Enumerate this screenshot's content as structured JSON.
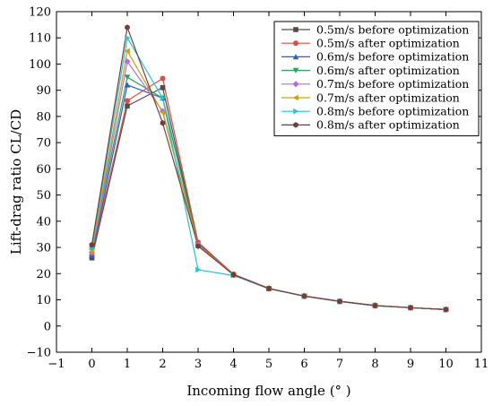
{
  "chart_data": {
    "type": "line",
    "title": "",
    "xlabel": "Incoming flow angle (° )",
    "ylabel": "Lift-drag ratio CL/CD",
    "xlim": [
      -1,
      11
    ],
    "ylim": [
      -10,
      120
    ],
    "xticks": [
      -1,
      0,
      1,
      2,
      3,
      4,
      5,
      6,
      7,
      8,
      9,
      10,
      11
    ],
    "yticks": [
      -10,
      0,
      10,
      20,
      30,
      40,
      50,
      60,
      70,
      80,
      90,
      100,
      110,
      120
    ],
    "x": [
      0,
      1,
      2,
      3,
      4,
      5,
      6,
      7,
      8,
      9,
      10
    ],
    "grid": false,
    "legend_position": "top-right",
    "series": [
      {
        "name": "0.5m/s before optimization",
        "color": "#4d4d4d",
        "marker": "square",
        "values": [
          26,
          84,
          91,
          31,
          19.5,
          14.3,
          11.4,
          9.4,
          7.8,
          7.0,
          6.3
        ]
      },
      {
        "name": "0.5m/s after optimization",
        "color": "#e8483f",
        "marker": "circle",
        "values": [
          27,
          86,
          94.5,
          32,
          19.8,
          14.4,
          11.5,
          9.5,
          7.9,
          7.0,
          6.3
        ]
      },
      {
        "name": "0.6m/s before optimization",
        "color": "#2a60c8",
        "marker": "triangle-up",
        "values": [
          27,
          92,
          87,
          31.5,
          19.5,
          14.3,
          11.4,
          9.4,
          7.8,
          7.0,
          6.3
        ]
      },
      {
        "name": "0.6m/s after optimization",
        "color": "#26a65b",
        "marker": "triangle-down",
        "values": [
          29,
          95,
          87,
          31,
          19.5,
          14.3,
          11.4,
          9.4,
          7.8,
          7.0,
          6.3
        ]
      },
      {
        "name": "0.7m/s before optimization",
        "color": "#b76be3",
        "marker": "diamond",
        "values": [
          28,
          101,
          82,
          31,
          19.6,
          14.3,
          11.4,
          9.4,
          7.8,
          7.0,
          6.3
        ]
      },
      {
        "name": "0.7m/s after optimization",
        "color": "#c9a010",
        "marker": "triangle-left",
        "values": [
          28.5,
          105,
          81.5,
          31,
          19.6,
          14.3,
          11.4,
          9.4,
          7.8,
          7.0,
          6.3
        ]
      },
      {
        "name": "0.8m/s before optimization",
        "color": "#1fc9cc",
        "marker": "triangle-right",
        "values": [
          30,
          110,
          87,
          21.5,
          19.3,
          14.2,
          11.4,
          9.4,
          7.8,
          7.0,
          6.3
        ]
      },
      {
        "name": "0.8m/s after optimization",
        "color": "#7a3a3a",
        "marker": "hexagon",
        "values": [
          31,
          114,
          77.5,
          30.5,
          19.6,
          14.3,
          11.4,
          9.4,
          7.8,
          7.0,
          6.3
        ]
      }
    ]
  }
}
